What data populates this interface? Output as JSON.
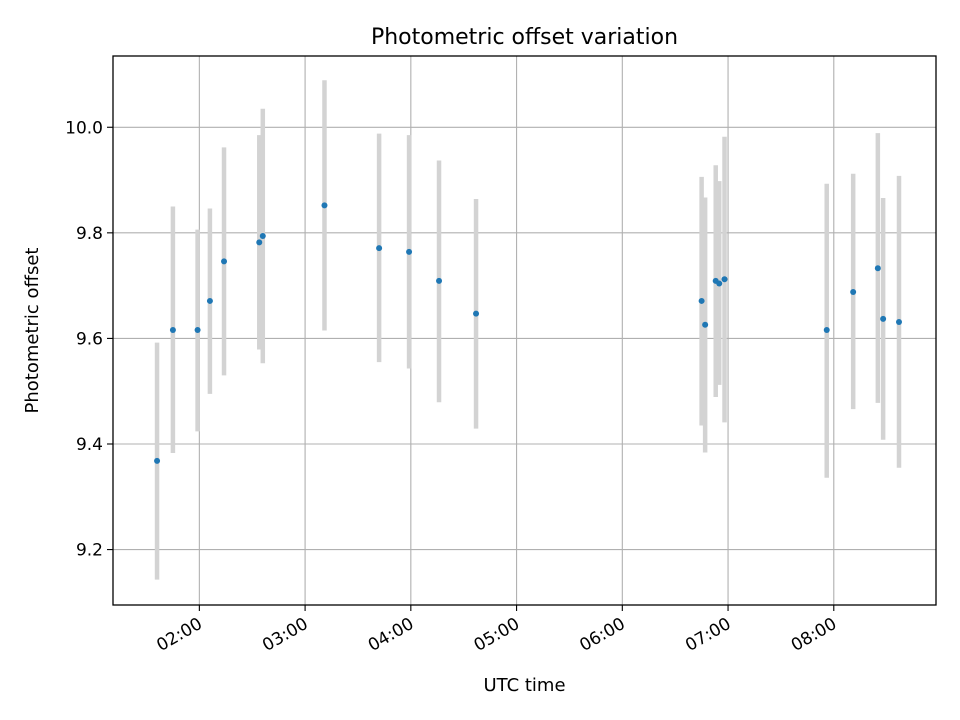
{
  "chart_data": {
    "type": "scatter",
    "title": "Photometric offset variation",
    "xlabel": "UTC time",
    "ylabel": "Photometric offset",
    "x_unit": "UTC time of day (HH:MM)",
    "xlim": [
      "01:11",
      "08:58"
    ],
    "ylim": [
      9.095,
      10.135
    ],
    "x_ticks": [
      "02:00",
      "03:00",
      "04:00",
      "05:00",
      "06:00",
      "07:00",
      "08:00"
    ],
    "y_ticks": [
      "9.2",
      "9.4",
      "9.6",
      "9.8",
      "10.0"
    ],
    "grid": true,
    "legend": "none",
    "colors": {
      "point": "#1f77b4",
      "errorbar": "#d3d3d3",
      "grid": "#b0b0b0"
    },
    "points": [
      {
        "x": "01:36",
        "y": 9.368,
        "ylow": 9.143,
        "yhigh": 9.592
      },
      {
        "x": "01:45",
        "y": 9.616,
        "ylow": 9.383,
        "yhigh": 9.85
      },
      {
        "x": "01:59",
        "y": 9.616,
        "ylow": 9.424,
        "yhigh": 9.806
      },
      {
        "x": "02:06",
        "y": 9.671,
        "ylow": 9.495,
        "yhigh": 9.846
      },
      {
        "x": "02:14",
        "y": 9.746,
        "ylow": 9.53,
        "yhigh": 9.962
      },
      {
        "x": "02:34",
        "y": 9.782,
        "ylow": 9.579,
        "yhigh": 9.985
      },
      {
        "x": "02:36",
        "y": 9.794,
        "ylow": 9.553,
        "yhigh": 10.035
      },
      {
        "x": "03:11",
        "y": 9.852,
        "ylow": 9.615,
        "yhigh": 10.089
      },
      {
        "x": "03:42",
        "y": 9.771,
        "ylow": 9.555,
        "yhigh": 9.988
      },
      {
        "x": "03:59",
        "y": 9.764,
        "ylow": 9.543,
        "yhigh": 9.985
      },
      {
        "x": "04:16",
        "y": 9.709,
        "ylow": 9.479,
        "yhigh": 9.937
      },
      {
        "x": "04:37",
        "y": 9.647,
        "ylow": 9.429,
        "yhigh": 9.864
      },
      {
        "x": "06:45",
        "y": 9.671,
        "ylow": 9.435,
        "yhigh": 9.906
      },
      {
        "x": "06:47",
        "y": 9.626,
        "ylow": 9.384,
        "yhigh": 9.867
      },
      {
        "x": "06:53",
        "y": 9.709,
        "ylow": 9.489,
        "yhigh": 9.928
      },
      {
        "x": "06:55",
        "y": 9.704,
        "ylow": 9.512,
        "yhigh": 9.898
      },
      {
        "x": "06:58",
        "y": 9.712,
        "ylow": 9.441,
        "yhigh": 9.982
      },
      {
        "x": "07:56",
        "y": 9.616,
        "ylow": 9.336,
        "yhigh": 9.893
      },
      {
        "x": "08:11",
        "y": 9.688,
        "ylow": 9.466,
        "yhigh": 9.912
      },
      {
        "x": "08:25",
        "y": 9.733,
        "ylow": 9.478,
        "yhigh": 9.989
      },
      {
        "x": "08:28",
        "y": 9.637,
        "ylow": 9.408,
        "yhigh": 9.866
      },
      {
        "x": "08:37",
        "y": 9.631,
        "ylow": 9.355,
        "yhigh": 9.908
      }
    ]
  }
}
